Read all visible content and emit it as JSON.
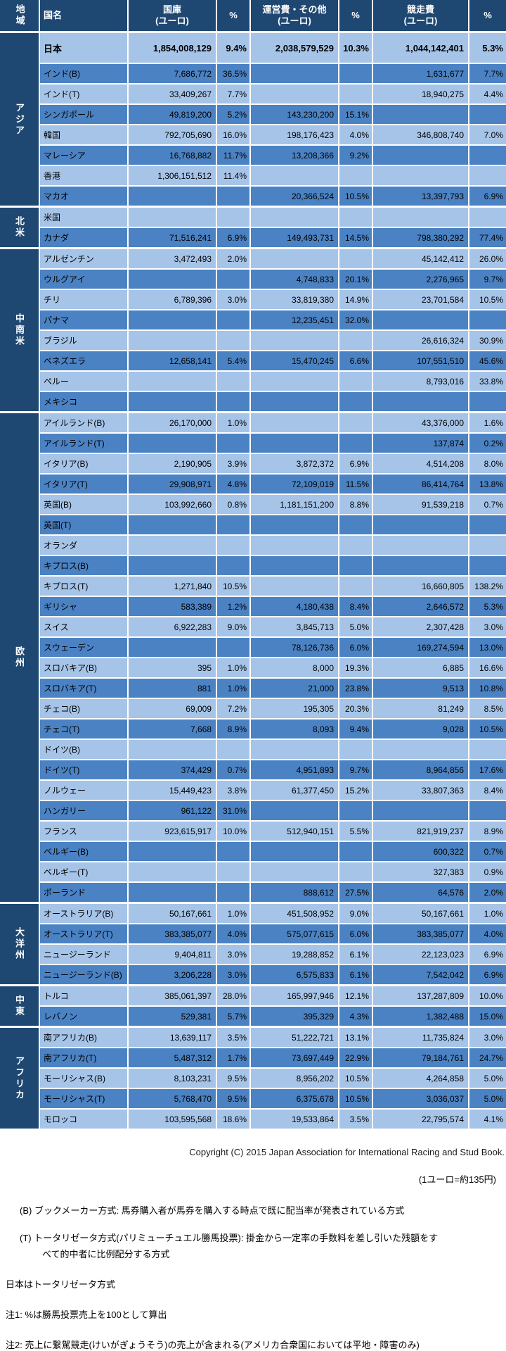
{
  "colors": {
    "header_bg": "#1E4872",
    "row_light": "#A6C4E8",
    "row_medium": "#4B82C3",
    "gridline": "#FFFFFF",
    "header_text": "#FFFFFF",
    "body_text": "#000000"
  },
  "table": {
    "header": {
      "region": "地域",
      "country": "国名",
      "treasury": "国庫\n(ユーロ)",
      "operating": "運営費・その他\n(ユーロ)",
      "racing": "競走費\n(ユーロ)",
      "pct": "%"
    }
  },
  "chart_data": {
    "type": "table",
    "columns": [
      "地域",
      "国名",
      "国庫(ユーロ)",
      "%",
      "運営費・その他(ユーロ)",
      "%",
      "競走費(ユーロ)",
      "%"
    ],
    "groups": [
      {
        "region": "アジア",
        "rows": [
          [
            "日本",
            "1,854,008,129",
            "9.4%",
            "2,038,579,529",
            "10.3%",
            "1,044,142,401",
            "5.3%"
          ],
          [
            "インド(B)",
            "7,686,772",
            "36.5%",
            "",
            "",
            "1,631,677",
            "7.7%"
          ],
          [
            "インド(T)",
            "33,409,267",
            "7.7%",
            "",
            "",
            "18,940,275",
            "4.4%"
          ],
          [
            "シンガポール",
            "49,819,200",
            "5.2%",
            "143,230,200",
            "15.1%",
            "",
            ""
          ],
          [
            "韓国",
            "792,705,690",
            "16.0%",
            "198,176,423",
            "4.0%",
            "346,808,740",
            "7.0%"
          ],
          [
            "マレーシア",
            "16,768,882",
            "11.7%",
            "13,208,366",
            "9.2%",
            "",
            ""
          ],
          [
            "香港",
            "1,306,151,512",
            "11.4%",
            "",
            "",
            "",
            ""
          ],
          [
            "マカオ",
            "",
            "",
            "20,366,524",
            "10.5%",
            "13,397,793",
            "6.9%"
          ]
        ]
      },
      {
        "region": "北米",
        "rows": [
          [
            "米国",
            "",
            "",
            "",
            "",
            "",
            ""
          ],
          [
            "カナダ",
            "71,516,241",
            "6.9%",
            "149,493,731",
            "14.5%",
            "798,380,292",
            "77.4%"
          ]
        ]
      },
      {
        "region": "中南米",
        "rows": [
          [
            "アルゼンチン",
            "3,472,493",
            "2.0%",
            "",
            "",
            "45,142,412",
            "26.0%"
          ],
          [
            "ウルグアイ",
            "",
            "",
            "4,748,833",
            "20.1%",
            "2,276,965",
            "9.7%"
          ],
          [
            "チリ",
            "6,789,396",
            "3.0%",
            "33,819,380",
            "14.9%",
            "23,701,584",
            "10.5%"
          ],
          [
            "パナマ",
            "",
            "",
            "12,235,451",
            "32.0%",
            "",
            ""
          ],
          [
            "ブラジル",
            "",
            "",
            "",
            "",
            "26,616,324",
            "30.9%"
          ],
          [
            "ベネズエラ",
            "12,658,141",
            "5.4%",
            "15,470,245",
            "6.6%",
            "107,551,510",
            "45.6%"
          ],
          [
            "ペルー",
            "",
            "",
            "",
            "",
            "8,793,016",
            "33.8%"
          ],
          [
            "メキシコ",
            "",
            "",
            "",
            "",
            "",
            ""
          ]
        ]
      },
      {
        "region": "欧州",
        "rows": [
          [
            "アイルランド(B)",
            "26,170,000",
            "1.0%",
            "",
            "",
            "43,376,000",
            "1.6%"
          ],
          [
            "アイルランド(T)",
            "",
            "",
            "",
            "",
            "137,874",
            "0.2%"
          ],
          [
            "イタリア(B)",
            "2,190,905",
            "3.9%",
            "3,872,372",
            "6.9%",
            "4,514,208",
            "8.0%"
          ],
          [
            "イタリア(T)",
            "29,908,971",
            "4.8%",
            "72,109,019",
            "11.5%",
            "86,414,764",
            "13.8%"
          ],
          [
            "英国(B)",
            "103,992,660",
            "0.8%",
            "1,181,151,200",
            "8.8%",
            "91,539,218",
            "0.7%"
          ],
          [
            "英国(T)",
            "",
            "",
            "",
            "",
            "",
            ""
          ],
          [
            "オランダ",
            "",
            "",
            "",
            "",
            "",
            ""
          ],
          [
            "キプロス(B)",
            "",
            "",
            "",
            "",
            "",
            ""
          ],
          [
            "キプロス(T)",
            "1,271,840",
            "10.5%",
            "",
            "",
            "16,660,805",
            "138.2%"
          ],
          [
            "ギリシャ",
            "583,389",
            "1.2%",
            "4,180,438",
            "8.4%",
            "2,646,572",
            "5.3%"
          ],
          [
            "スイス",
            "6,922,283",
            "9.0%",
            "3,845,713",
            "5.0%",
            "2,307,428",
            "3.0%"
          ],
          [
            "スウェーデン",
            "",
            "",
            "78,126,736",
            "6.0%",
            "169,274,594",
            "13.0%"
          ],
          [
            "スロバキア(B)",
            "395",
            "1.0%",
            "8,000",
            "19.3%",
            "6,885",
            "16.6%"
          ],
          [
            "スロバキア(T)",
            "881",
            "1.0%",
            "21,000",
            "23.8%",
            "9,513",
            "10.8%"
          ],
          [
            "チェコ(B)",
            "69,009",
            "7.2%",
            "195,305",
            "20.3%",
            "81,249",
            "8.5%"
          ],
          [
            "チェコ(T)",
            "7,668",
            "8.9%",
            "8,093",
            "9.4%",
            "9,028",
            "10.5%"
          ],
          [
            "ドイツ(B)",
            "",
            "",
            "",
            "",
            "",
            ""
          ],
          [
            "ドイツ(T)",
            "374,429",
            "0.7%",
            "4,951,893",
            "9.7%",
            "8,964,856",
            "17.6%"
          ],
          [
            "ノルウェー",
            "15,449,423",
            "3.8%",
            "61,377,450",
            "15.2%",
            "33,807,363",
            "8.4%"
          ],
          [
            "ハンガリー",
            "961,122",
            "31.0%",
            "",
            "",
            "",
            ""
          ],
          [
            "フランス",
            "923,615,917",
            "10.0%",
            "512,940,151",
            "5.5%",
            "821,919,237",
            "8.9%"
          ],
          [
            "ベルギー(B)",
            "",
            "",
            "",
            "",
            "600,322",
            "0.7%"
          ],
          [
            "ベルギー(T)",
            "",
            "",
            "",
            "",
            "327,383",
            "0.9%"
          ],
          [
            "ポーランド",
            "",
            "",
            "888,612",
            "27.5%",
            "64,576",
            "2.0%"
          ]
        ]
      },
      {
        "region": "大洋州",
        "rows": [
          [
            "オーストラリア(B)",
            "50,167,661",
            "1.0%",
            "451,508,952",
            "9.0%",
            "50,167,661",
            "1.0%"
          ],
          [
            "オーストラリア(T)",
            "383,385,077",
            "4.0%",
            "575,077,615",
            "6.0%",
            "383,385,077",
            "4.0%"
          ],
          [
            "ニュージーランド",
            "9,404,811",
            "3.0%",
            "19,288,852",
            "6.1%",
            "22,123,023",
            "6.9%"
          ],
          [
            "ニュージーランド(B)",
            "3,206,228",
            "3.0%",
            "6,575,833",
            "6.1%",
            "7,542,042",
            "6.9%"
          ]
        ]
      },
      {
        "region": "中東",
        "rows": [
          [
            "トルコ",
            "385,061,397",
            "28.0%",
            "165,997,946",
            "12.1%",
            "137,287,809",
            "10.0%"
          ],
          [
            "レバノン",
            "529,381",
            "5.7%",
            "395,329",
            "4.3%",
            "1,382,488",
            "15.0%"
          ]
        ]
      },
      {
        "region": "アフリカ",
        "rows": [
          [
            "南アフリカ(B)",
            "13,639,117",
            "3.5%",
            "51,222,721",
            "13.1%",
            "11,735,824",
            "3.0%"
          ],
          [
            "南アフリカ(T)",
            "5,487,312",
            "1.7%",
            "73,697,449",
            "22.9%",
            "79,184,761",
            "24.7%"
          ],
          [
            "モーリシャス(B)",
            "8,103,231",
            "9.5%",
            "8,956,202",
            "10.5%",
            "4,264,858",
            "5.0%"
          ],
          [
            "モーリシャス(T)",
            "5,768,470",
            "9.5%",
            "6,375,678",
            "10.5%",
            "3,036,037",
            "5.0%"
          ],
          [
            "モロッコ",
            "103,595,568",
            "18.6%",
            "19,533,864",
            "3.5%",
            "22,795,574",
            "4.1%"
          ]
        ]
      }
    ]
  },
  "footer": {
    "copyright": "Copyright (C) 2015 Japan Association for International Racing and Stud Book.",
    "exchange_rate": "(1ユーロ=約135円)",
    "note_b": "(B) ブックメーカー方式: 馬券購入者が馬券を購入する時点で既に配当率が発表されている方式",
    "note_t": "(T) トータリゼータ方式(パリミューチュエル勝馬投票): 掛金から一定率の手数料を差し引いた残額をす\nべて的中者に比例配分する方式",
    "note_japan": "日本はトータリゼータ方式",
    "note_1": "注1: %は勝馬投票売上を100として算出",
    "note_2": "注2: 売上に繋駕競走(けいがぎょうそう)の売上が含まれる(アメリカ合衆国においては平地・障害のみ)"
  }
}
